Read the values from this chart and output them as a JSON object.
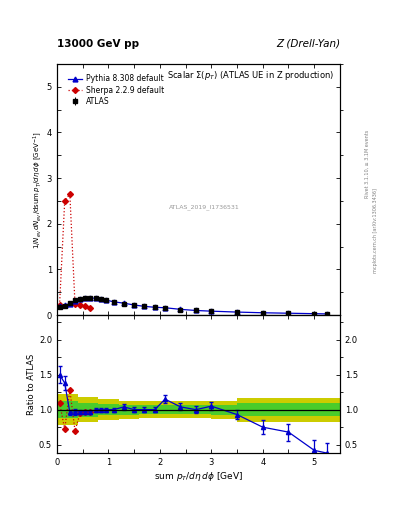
{
  "title_left": "13000 GeV pp",
  "title_right": "Z (Drell-Yan)",
  "plot_title": "Scalar Σ(p_T) (ATLAS UE in Z production)",
  "watermark": "ATLAS_2019_I1736531",
  "ylabel_ratio": "Ratio to ATLAS",
  "xlabel": "sum p_T/dη dφ [GeV]",
  "right_label1": "Rivet 3.1.10, ≥ 3.1M events",
  "right_label2": "mcplots.cern.ch [arXiv:1306.3436]",
  "xlim": [
    0,
    5.5
  ],
  "ylim_main": [
    0,
    5.5
  ],
  "ylim_ratio": [
    0.38,
    2.35
  ],
  "atlas_x": [
    0.05,
    0.15,
    0.25,
    0.35,
    0.45,
    0.55,
    0.65,
    0.75,
    0.85,
    0.95,
    1.1,
    1.3,
    1.5,
    1.7,
    1.9,
    2.1,
    2.4,
    2.7,
    3.0,
    3.5,
    4.0,
    4.5,
    5.0,
    5.25
  ],
  "atlas_y": [
    0.18,
    0.2,
    0.26,
    0.32,
    0.36,
    0.38,
    0.38,
    0.37,
    0.35,
    0.33,
    0.29,
    0.25,
    0.22,
    0.19,
    0.17,
    0.15,
    0.12,
    0.1,
    0.08,
    0.06,
    0.05,
    0.04,
    0.03,
    0.025
  ],
  "atlas_yerr": [
    0.01,
    0.01,
    0.01,
    0.01,
    0.01,
    0.01,
    0.01,
    0.01,
    0.01,
    0.01,
    0.01,
    0.01,
    0.01,
    0.01,
    0.01,
    0.01,
    0.01,
    0.005,
    0.005,
    0.005,
    0.004,
    0.003,
    0.003,
    0.002
  ],
  "pythia_x": [
    0.05,
    0.15,
    0.25,
    0.35,
    0.45,
    0.55,
    0.65,
    0.75,
    0.85,
    0.95,
    1.1,
    1.3,
    1.5,
    1.7,
    1.9,
    2.1,
    2.4,
    2.7,
    3.0,
    3.5,
    4.0,
    4.5,
    5.0,
    5.25
  ],
  "pythia_y": [
    0.2,
    0.22,
    0.25,
    0.31,
    0.35,
    0.37,
    0.37,
    0.37,
    0.35,
    0.33,
    0.29,
    0.26,
    0.22,
    0.19,
    0.17,
    0.16,
    0.125,
    0.1,
    0.085,
    0.065,
    0.05,
    0.04,
    0.03,
    0.025
  ],
  "sherpa_x": [
    0.05,
    0.15,
    0.25,
    0.35,
    0.45,
    0.55,
    0.65
  ],
  "sherpa_y": [
    0.22,
    2.5,
    2.65,
    0.24,
    0.21,
    0.19,
    0.16
  ],
  "pythia_ratio_x": [
    0.05,
    0.15,
    0.25,
    0.35,
    0.45,
    0.55,
    0.65,
    0.75,
    0.85,
    0.95,
    1.1,
    1.3,
    1.5,
    1.7,
    1.9,
    2.1,
    2.4,
    2.7,
    3.0,
    3.5,
    4.0,
    4.5,
    5.0,
    5.25
  ],
  "pythia_ratio_y": [
    1.5,
    1.38,
    0.96,
    0.97,
    0.97,
    0.97,
    0.97,
    1.0,
    1.0,
    1.0,
    1.0,
    1.04,
    1.0,
    1.0,
    1.0,
    1.15,
    1.04,
    1.0,
    1.05,
    0.93,
    0.75,
    0.68,
    0.42,
    0.38
  ],
  "pythia_ratio_err": [
    0.12,
    0.1,
    0.04,
    0.04,
    0.03,
    0.03,
    0.03,
    0.03,
    0.03,
    0.03,
    0.03,
    0.04,
    0.04,
    0.04,
    0.04,
    0.06,
    0.05,
    0.05,
    0.06,
    0.07,
    0.1,
    0.12,
    0.15,
    0.15
  ],
  "sherpa_ratio_x": [
    0.05,
    0.15,
    0.25,
    0.35,
    0.45,
    0.55,
    0.65
  ],
  "sherpa_ratio_y": [
    1.1,
    0.72,
    1.28,
    0.7,
    0.95,
    0.97,
    0.97
  ],
  "green_band_x": [
    0.0,
    0.4,
    0.8,
    1.2,
    1.6,
    2.0,
    2.5,
    3.0,
    3.5,
    4.0,
    4.5,
    5.5
  ],
  "green_band_lo": [
    0.88,
    0.9,
    0.92,
    0.93,
    0.94,
    0.94,
    0.94,
    0.93,
    0.91,
    0.91,
    0.91,
    0.91
  ],
  "green_band_hi": [
    1.12,
    1.1,
    1.08,
    1.07,
    1.06,
    1.06,
    1.06,
    1.07,
    1.09,
    1.09,
    1.09,
    1.09
  ],
  "yellow_band_x": [
    0.0,
    0.4,
    0.8,
    1.2,
    1.6,
    2.0,
    2.5,
    3.0,
    3.5,
    4.0,
    4.5,
    5.5
  ],
  "yellow_band_lo": [
    0.78,
    0.82,
    0.85,
    0.87,
    0.88,
    0.88,
    0.88,
    0.87,
    0.83,
    0.83,
    0.83,
    0.83
  ],
  "yellow_band_hi": [
    1.22,
    1.18,
    1.15,
    1.13,
    1.12,
    1.12,
    1.12,
    1.13,
    1.17,
    1.17,
    1.17,
    1.17
  ],
  "color_atlas": "#000000",
  "color_pythia": "#0000cc",
  "color_sherpa": "#cc0000",
  "color_green": "#33cc33",
  "color_yellow": "#cccc00",
  "bg_color": "#ffffff"
}
